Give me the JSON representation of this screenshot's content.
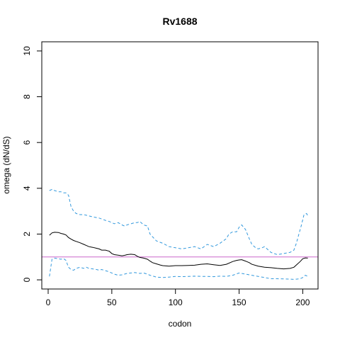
{
  "chart_data": {
    "type": "line",
    "title": "Rv1688",
    "xlabel": "codon",
    "ylabel": "omega (dN/dS)",
    "xlim": [
      -5,
      212
    ],
    "ylim": [
      -0.4,
      10.4
    ],
    "x_ticks": [
      0,
      50,
      100,
      150,
      200
    ],
    "y_ticks": [
      0,
      2,
      4,
      6,
      8,
      10
    ],
    "grid": false,
    "legend": "none",
    "reference_line": {
      "y": 1,
      "color": "#cc66cc"
    },
    "series": [
      {
        "style": "solid",
        "color": "#000000",
        "x": [
          1,
          3,
          5,
          8,
          10,
          12,
          14,
          16,
          18,
          20,
          22,
          25,
          28,
          30,
          32,
          35,
          38,
          40,
          42,
          45,
          48,
          50,
          52,
          55,
          58,
          60,
          62,
          65,
          68,
          70,
          72,
          75,
          78,
          80,
          82,
          85,
          88,
          90,
          95,
          100,
          105,
          110,
          115,
          120,
          125,
          130,
          135,
          140,
          145,
          148,
          150,
          152,
          155,
          158,
          160,
          165,
          170,
          175,
          180,
          185,
          190,
          193,
          195,
          198,
          200,
          202,
          204
        ],
        "y": [
          1.95,
          2.05,
          2.08,
          2.07,
          2.03,
          2.0,
          1.96,
          1.85,
          1.78,
          1.72,
          1.68,
          1.62,
          1.55,
          1.5,
          1.45,
          1.42,
          1.38,
          1.35,
          1.3,
          1.3,
          1.25,
          1.15,
          1.1,
          1.08,
          1.05,
          1.07,
          1.1,
          1.12,
          1.1,
          1.03,
          0.98,
          0.95,
          0.9,
          0.82,
          0.75,
          0.7,
          0.65,
          0.62,
          0.6,
          0.62,
          0.62,
          0.63,
          0.64,
          0.68,
          0.7,
          0.66,
          0.63,
          0.68,
          0.8,
          0.85,
          0.87,
          0.88,
          0.82,
          0.75,
          0.68,
          0.6,
          0.55,
          0.53,
          0.5,
          0.48,
          0.5,
          0.55,
          0.65,
          0.8,
          0.92,
          0.96,
          0.95
        ]
      },
      {
        "style": "dashed",
        "color": "#3399dd",
        "x": [
          1,
          3,
          5,
          8,
          10,
          12,
          14,
          16,
          18,
          20,
          22,
          25,
          28,
          30,
          35,
          40,
          45,
          48,
          50,
          52,
          55,
          58,
          60,
          62,
          65,
          68,
          70,
          72,
          75,
          78,
          80,
          85,
          90,
          95,
          100,
          105,
          110,
          115,
          120,
          125,
          130,
          135,
          140,
          142,
          145,
          148,
          150,
          152,
          155,
          158,
          160,
          163,
          165,
          168,
          170,
          175,
          180,
          185,
          190,
          193,
          195,
          197,
          199,
          201,
          203,
          204
        ],
        "y": [
          3.9,
          3.95,
          3.9,
          3.85,
          3.85,
          3.8,
          3.8,
          3.7,
          3.2,
          3.0,
          2.9,
          2.85,
          2.85,
          2.82,
          2.75,
          2.7,
          2.6,
          2.55,
          2.5,
          2.45,
          2.5,
          2.4,
          2.35,
          2.4,
          2.45,
          2.5,
          2.5,
          2.55,
          2.4,
          2.35,
          2.0,
          1.7,
          1.6,
          1.45,
          1.4,
          1.35,
          1.4,
          1.45,
          1.35,
          1.55,
          1.45,
          1.6,
          1.8,
          2.0,
          2.1,
          2.1,
          2.3,
          2.4,
          2.2,
          1.8,
          1.55,
          1.4,
          1.35,
          1.4,
          1.45,
          1.2,
          1.1,
          1.15,
          1.2,
          1.3,
          1.6,
          2.0,
          2.4,
          2.85,
          2.9,
          2.8
        ]
      },
      {
        "style": "dashed",
        "color": "#3399dd",
        "x": [
          1,
          3,
          5,
          8,
          10,
          12,
          14,
          16,
          18,
          20,
          22,
          25,
          28,
          30,
          32,
          35,
          38,
          40,
          42,
          45,
          48,
          50,
          52,
          55,
          58,
          60,
          62,
          65,
          68,
          70,
          72,
          75,
          78,
          80,
          85,
          90,
          95,
          100,
          105,
          110,
          115,
          120,
          125,
          130,
          135,
          140,
          145,
          150,
          155,
          160,
          165,
          170,
          175,
          180,
          185,
          190,
          193,
          195,
          198,
          200,
          202,
          204
        ],
        "y": [
          0.15,
          0.9,
          0.95,
          0.92,
          0.9,
          0.93,
          0.85,
          0.55,
          0.45,
          0.42,
          0.5,
          0.55,
          0.5,
          0.55,
          0.5,
          0.48,
          0.45,
          0.42,
          0.45,
          0.4,
          0.35,
          0.3,
          0.25,
          0.2,
          0.22,
          0.25,
          0.28,
          0.3,
          0.32,
          0.3,
          0.28,
          0.3,
          0.25,
          0.2,
          0.12,
          0.1,
          0.12,
          0.15,
          0.14,
          0.15,
          0.16,
          0.15,
          0.15,
          0.14,
          0.16,
          0.15,
          0.2,
          0.3,
          0.25,
          0.2,
          0.15,
          0.1,
          0.05,
          0.05,
          0.04,
          0.03,
          0.02,
          0.03,
          0.05,
          0.1,
          0.2,
          0.15
        ]
      }
    ]
  }
}
